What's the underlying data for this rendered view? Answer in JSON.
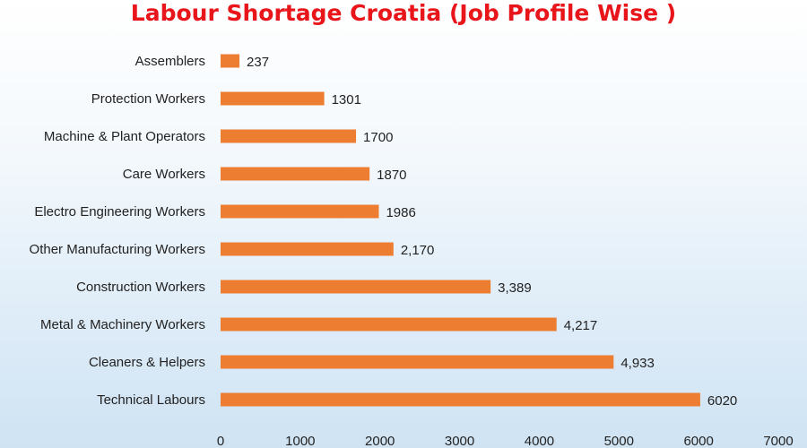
{
  "chart_data": {
    "type": "bar",
    "orientation": "horizontal",
    "title": "Labour Shortage Croatia (Job Profile Wise )",
    "title_color": "#e8151b",
    "bar_color": "#ed7d31",
    "categories": [
      "Assemblers",
      "Protection Workers",
      "Machine & Plant Operators",
      "Care Workers",
      "Electro Engineering Workers",
      "Other Manufacturing Workers",
      "Construction Workers",
      "Metal & Machinery Workers",
      "Cleaners & Helpers",
      "Technical Labours"
    ],
    "values": [
      237,
      1301,
      1700,
      1870,
      1986,
      2170,
      3389,
      4217,
      4933,
      6020
    ],
    "data_labels": [
      "237",
      "1301",
      "1700",
      "1870",
      "1986",
      "2,170",
      "3,389",
      "4,217",
      "4,933",
      "6020"
    ],
    "xlim": [
      0,
      7000
    ],
    "x_ticks": [
      0,
      1000,
      2000,
      3000,
      4000,
      5000,
      6000,
      7000
    ],
    "grid": false,
    "legend": "none"
  }
}
